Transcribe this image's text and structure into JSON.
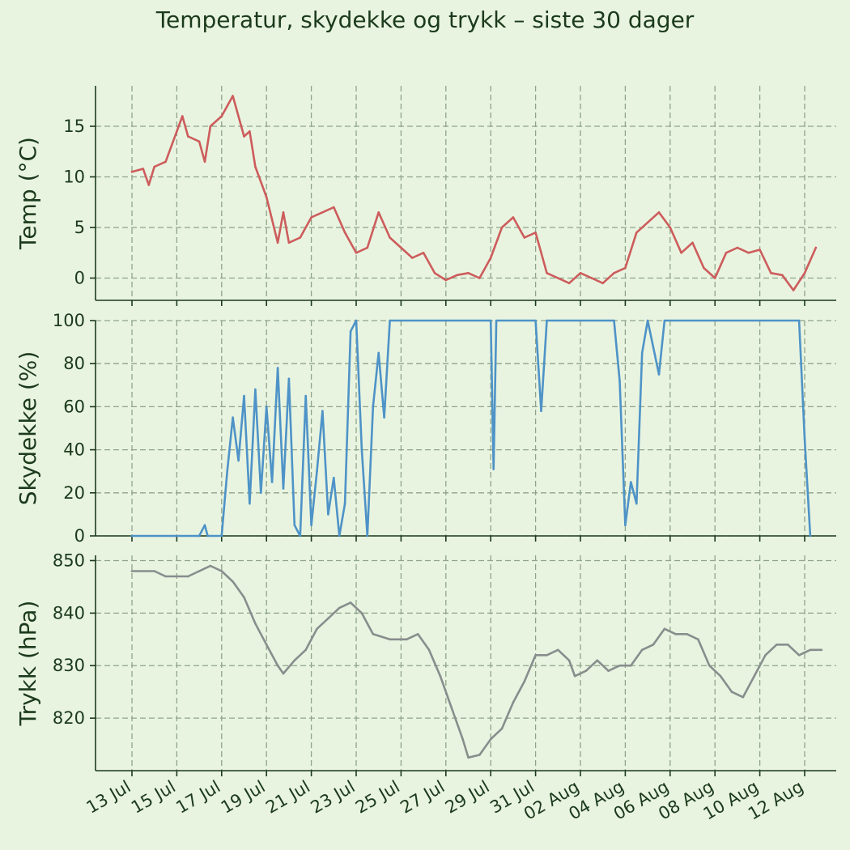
{
  "chart_data": {
    "type": "line",
    "title": "Temperatur, skydekke og trykk – siste 30 dager",
    "x_start": "2025-07-13",
    "x_end": "2025-08-12",
    "x_tick_labels": [
      "13 Jul",
      "15 Jul",
      "17 Jul",
      "19 Jul",
      "21 Jul",
      "23 Jul",
      "25 Jul",
      "27 Jul",
      "29 Jul",
      "31 Jul",
      "02 Aug",
      "04 Aug",
      "06 Aug",
      "08 Aug",
      "10 Aug",
      "12 Aug"
    ],
    "grid": true,
    "panels": [
      {
        "ylabel": "Temp (°C)",
        "color": "#cd5c5c",
        "ylim": [
          -2.2,
          19
        ],
        "yticks": [
          0,
          5,
          10,
          15
        ],
        "series": [
          {
            "x": "2025-07-13 00:00",
            "y": 10.5
          },
          {
            "x": "2025-07-13 12:00",
            "y": 10.8
          },
          {
            "x": "2025-07-13 18:00",
            "y": 9.2
          },
          {
            "x": "2025-07-14 00:00",
            "y": 11
          },
          {
            "x": "2025-07-14 12:00",
            "y": 11.5
          },
          {
            "x": "2025-07-15 00:00",
            "y": 14.5
          },
          {
            "x": "2025-07-15 06:00",
            "y": 16
          },
          {
            "x": "2025-07-15 12:00",
            "y": 14
          },
          {
            "x": "2025-07-16 00:00",
            "y": 13.5
          },
          {
            "x": "2025-07-16 06:00",
            "y": 11.5
          },
          {
            "x": "2025-07-16 12:00",
            "y": 15
          },
          {
            "x": "2025-07-17 00:00",
            "y": 16
          },
          {
            "x": "2025-07-17 12:00",
            "y": 18
          },
          {
            "x": "2025-07-18 00:00",
            "y": 14
          },
          {
            "x": "2025-07-18 06:00",
            "y": 14.5
          },
          {
            "x": "2025-07-18 12:00",
            "y": 11
          },
          {
            "x": "2025-07-19 00:00",
            "y": 8
          },
          {
            "x": "2025-07-19 12:00",
            "y": 3.5
          },
          {
            "x": "2025-07-19 18:00",
            "y": 6.5
          },
          {
            "x": "2025-07-20 00:00",
            "y": 3.5
          },
          {
            "x": "2025-07-20 12:00",
            "y": 4
          },
          {
            "x": "2025-07-21 00:00",
            "y": 6
          },
          {
            "x": "2025-07-21 12:00",
            "y": 6.5
          },
          {
            "x": "2025-07-22 00:00",
            "y": 7
          },
          {
            "x": "2025-07-22 12:00",
            "y": 4.5
          },
          {
            "x": "2025-07-23 00:00",
            "y": 2.5
          },
          {
            "x": "2025-07-23 12:00",
            "y": 3
          },
          {
            "x": "2025-07-24 00:00",
            "y": 6.5
          },
          {
            "x": "2025-07-24 12:00",
            "y": 4
          },
          {
            "x": "2025-07-25 00:00",
            "y": 3
          },
          {
            "x": "2025-07-25 12:00",
            "y": 2
          },
          {
            "x": "2025-07-26 00:00",
            "y": 2.5
          },
          {
            "x": "2025-07-26 12:00",
            "y": 0.5
          },
          {
            "x": "2025-07-27 00:00",
            "y": -0.2
          },
          {
            "x": "2025-07-27 12:00",
            "y": 0.3
          },
          {
            "x": "2025-07-28 00:00",
            "y": 0.5
          },
          {
            "x": "2025-07-28 12:00",
            "y": 0
          },
          {
            "x": "2025-07-29 00:00",
            "y": 2
          },
          {
            "x": "2025-07-29 12:00",
            "y": 5
          },
          {
            "x": "2025-07-30 00:00",
            "y": 6
          },
          {
            "x": "2025-07-30 12:00",
            "y": 4
          },
          {
            "x": "2025-07-31 00:00",
            "y": 4.5
          },
          {
            "x": "2025-07-31 12:00",
            "y": 0.5
          },
          {
            "x": "2025-08-01 00:00",
            "y": 0
          },
          {
            "x": "2025-08-01 12:00",
            "y": -0.5
          },
          {
            "x": "2025-08-02 00:00",
            "y": 0.5
          },
          {
            "x": "2025-08-02 12:00",
            "y": 0
          },
          {
            "x": "2025-08-03 00:00",
            "y": -0.5
          },
          {
            "x": "2025-08-03 12:00",
            "y": 0.5
          },
          {
            "x": "2025-08-04 00:00",
            "y": 1
          },
          {
            "x": "2025-08-04 12:00",
            "y": 4.5
          },
          {
            "x": "2025-08-05 00:00",
            "y": 5.5
          },
          {
            "x": "2025-08-05 12:00",
            "y": 6.5
          },
          {
            "x": "2025-08-06 00:00",
            "y": 5
          },
          {
            "x": "2025-08-06 12:00",
            "y": 2.5
          },
          {
            "x": "2025-08-07 00:00",
            "y": 3.5
          },
          {
            "x": "2025-08-07 12:00",
            "y": 1
          },
          {
            "x": "2025-08-08 00:00",
            "y": 0
          },
          {
            "x": "2025-08-08 12:00",
            "y": 2.5
          },
          {
            "x": "2025-08-09 00:00",
            "y": 3
          },
          {
            "x": "2025-08-09 12:00",
            "y": 2.5
          },
          {
            "x": "2025-08-10 00:00",
            "y": 2.8
          },
          {
            "x": "2025-08-10 12:00",
            "y": 0.5
          },
          {
            "x": "2025-08-11 00:00",
            "y": 0.3
          },
          {
            "x": "2025-08-11 12:00",
            "y": -1.2
          },
          {
            "x": "2025-08-12 00:00",
            "y": 0.5
          },
          {
            "x": "2025-08-12 12:00",
            "y": 3
          }
        ]
      },
      {
        "ylabel": "Skydekke (%)",
        "color": "#4e93c7",
        "ylim": [
          0,
          100
        ],
        "yticks": [
          0,
          20,
          40,
          60,
          80,
          100
        ],
        "series": [
          {
            "x": "2025-07-13 00:00",
            "y": 0
          },
          {
            "x": "2025-07-16 00:00",
            "y": 0
          },
          {
            "x": "2025-07-16 06:00",
            "y": 5
          },
          {
            "x": "2025-07-16 09:00",
            "y": 0
          },
          {
            "x": "2025-07-17 00:00",
            "y": 0
          },
          {
            "x": "2025-07-17 06:00",
            "y": 30
          },
          {
            "x": "2025-07-17 12:00",
            "y": 55
          },
          {
            "x": "2025-07-17 18:00",
            "y": 35
          },
          {
            "x": "2025-07-18 00:00",
            "y": 65
          },
          {
            "x": "2025-07-18 06:00",
            "y": 15
          },
          {
            "x": "2025-07-18 12:00",
            "y": 68
          },
          {
            "x": "2025-07-18 18:00",
            "y": 20
          },
          {
            "x": "2025-07-19 00:00",
            "y": 60
          },
          {
            "x": "2025-07-19 06:00",
            "y": 25
          },
          {
            "x": "2025-07-19 12:00",
            "y": 78
          },
          {
            "x": "2025-07-19 18:00",
            "y": 22
          },
          {
            "x": "2025-07-20 00:00",
            "y": 73
          },
          {
            "x": "2025-07-20 06:00",
            "y": 5
          },
          {
            "x": "2025-07-20 12:00",
            "y": 0
          },
          {
            "x": "2025-07-20 18:00",
            "y": 65
          },
          {
            "x": "2025-07-21 00:00",
            "y": 5
          },
          {
            "x": "2025-07-21 06:00",
            "y": 30
          },
          {
            "x": "2025-07-21 12:00",
            "y": 58
          },
          {
            "x": "2025-07-21 18:00",
            "y": 10
          },
          {
            "x": "2025-07-22 00:00",
            "y": 27
          },
          {
            "x": "2025-07-22 06:00",
            "y": 0
          },
          {
            "x": "2025-07-22 12:00",
            "y": 15
          },
          {
            "x": "2025-07-22 18:00",
            "y": 95
          },
          {
            "x": "2025-07-23 00:00",
            "y": 100
          },
          {
            "x": "2025-07-23 06:00",
            "y": 40
          },
          {
            "x": "2025-07-23 12:00",
            "y": 0
          },
          {
            "x": "2025-07-23 18:00",
            "y": 60
          },
          {
            "x": "2025-07-24 00:00",
            "y": 85
          },
          {
            "x": "2025-07-24 06:00",
            "y": 55
          },
          {
            "x": "2025-07-24 12:00",
            "y": 100
          },
          {
            "x": "2025-07-29 00:00",
            "y": 100
          },
          {
            "x": "2025-07-29 03:00",
            "y": 31
          },
          {
            "x": "2025-07-29 06:00",
            "y": 100
          },
          {
            "x": "2025-07-31 00:00",
            "y": 100
          },
          {
            "x": "2025-07-31 06:00",
            "y": 58
          },
          {
            "x": "2025-07-31 12:00",
            "y": 100
          },
          {
            "x": "2025-08-03 12:00",
            "y": 100
          },
          {
            "x": "2025-08-03 18:00",
            "y": 72
          },
          {
            "x": "2025-08-04 00:00",
            "y": 5
          },
          {
            "x": "2025-08-04 06:00",
            "y": 25
          },
          {
            "x": "2025-08-04 12:00",
            "y": 15
          },
          {
            "x": "2025-08-04 18:00",
            "y": 85
          },
          {
            "x": "2025-08-05 00:00",
            "y": 100
          },
          {
            "x": "2025-08-05 12:00",
            "y": 75
          },
          {
            "x": "2025-08-05 18:00",
            "y": 100
          },
          {
            "x": "2025-08-11 18:00",
            "y": 100
          },
          {
            "x": "2025-08-12 00:00",
            "y": 45
          },
          {
            "x": "2025-08-12 06:00",
            "y": 0
          }
        ]
      },
      {
        "ylabel": "Trykk (hPa)",
        "color": "#888d8d",
        "ylim": [
          810,
          851
        ],
        "yticks": [
          820,
          830,
          840,
          850
        ],
        "series": [
          {
            "x": "2025-07-13 00:00",
            "y": 848
          },
          {
            "x": "2025-07-14 00:00",
            "y": 848
          },
          {
            "x": "2025-07-14 12:00",
            "y": 847
          },
          {
            "x": "2025-07-15 12:00",
            "y": 847
          },
          {
            "x": "2025-07-16 00:00",
            "y": 848
          },
          {
            "x": "2025-07-16 12:00",
            "y": 849
          },
          {
            "x": "2025-07-17 00:00",
            "y": 848
          },
          {
            "x": "2025-07-17 12:00",
            "y": 846
          },
          {
            "x": "2025-07-18 00:00",
            "y": 843
          },
          {
            "x": "2025-07-18 12:00",
            "y": 838
          },
          {
            "x": "2025-07-19 00:00",
            "y": 834
          },
          {
            "x": "2025-07-19 12:00",
            "y": 830
          },
          {
            "x": "2025-07-19 18:00",
            "y": 828.5
          },
          {
            "x": "2025-07-20 06:00",
            "y": 831
          },
          {
            "x": "2025-07-20 18:00",
            "y": 833
          },
          {
            "x": "2025-07-21 06:00",
            "y": 837
          },
          {
            "x": "2025-07-21 18:00",
            "y": 839
          },
          {
            "x": "2025-07-22 06:00",
            "y": 841
          },
          {
            "x": "2025-07-22 18:00",
            "y": 842
          },
          {
            "x": "2025-07-23 06:00",
            "y": 840
          },
          {
            "x": "2025-07-23 18:00",
            "y": 836
          },
          {
            "x": "2025-07-24 12:00",
            "y": 835
          },
          {
            "x": "2025-07-25 06:00",
            "y": 835
          },
          {
            "x": "2025-07-25 18:00",
            "y": 836
          },
          {
            "x": "2025-07-26 06:00",
            "y": 833
          },
          {
            "x": "2025-07-26 18:00",
            "y": 828
          },
          {
            "x": "2025-07-27 06:00",
            "y": 822
          },
          {
            "x": "2025-07-27 18:00",
            "y": 816
          },
          {
            "x": "2025-07-28 00:00",
            "y": 812.5
          },
          {
            "x": "2025-07-28 12:00",
            "y": 813
          },
          {
            "x": "2025-07-29 00:00",
            "y": 816
          },
          {
            "x": "2025-07-29 12:00",
            "y": 818
          },
          {
            "x": "2025-07-30 00:00",
            "y": 823
          },
          {
            "x": "2025-07-30 12:00",
            "y": 827
          },
          {
            "x": "2025-07-31 00:00",
            "y": 832
          },
          {
            "x": "2025-07-31 12:00",
            "y": 832
          },
          {
            "x": "2025-08-01 00:00",
            "y": 833
          },
          {
            "x": "2025-08-01 12:00",
            "y": 831
          },
          {
            "x": "2025-08-01 18:00",
            "y": 828
          },
          {
            "x": "2025-08-02 06:00",
            "y": 829
          },
          {
            "x": "2025-08-02 18:00",
            "y": 831
          },
          {
            "x": "2025-08-03 06:00",
            "y": 829
          },
          {
            "x": "2025-08-03 18:00",
            "y": 830
          },
          {
            "x": "2025-08-04 06:00",
            "y": 830
          },
          {
            "x": "2025-08-04 18:00",
            "y": 833
          },
          {
            "x": "2025-08-05 06:00",
            "y": 834
          },
          {
            "x": "2025-08-05 18:00",
            "y": 837
          },
          {
            "x": "2025-08-06 06:00",
            "y": 836
          },
          {
            "x": "2025-08-06 18:00",
            "y": 836
          },
          {
            "x": "2025-08-07 06:00",
            "y": 835
          },
          {
            "x": "2025-08-07 18:00",
            "y": 830
          },
          {
            "x": "2025-08-08 06:00",
            "y": 828
          },
          {
            "x": "2025-08-08 18:00",
            "y": 825
          },
          {
            "x": "2025-08-09 06:00",
            "y": 824
          },
          {
            "x": "2025-08-09 18:00",
            "y": 828
          },
          {
            "x": "2025-08-10 06:00",
            "y": 832
          },
          {
            "x": "2025-08-10 18:00",
            "y": 834
          },
          {
            "x": "2025-08-11 06:00",
            "y": 834
          },
          {
            "x": "2025-08-11 18:00",
            "y": 832
          },
          {
            "x": "2025-08-12 06:00",
            "y": 833
          },
          {
            "x": "2025-08-12 18:00",
            "y": 833
          }
        ]
      }
    ]
  }
}
